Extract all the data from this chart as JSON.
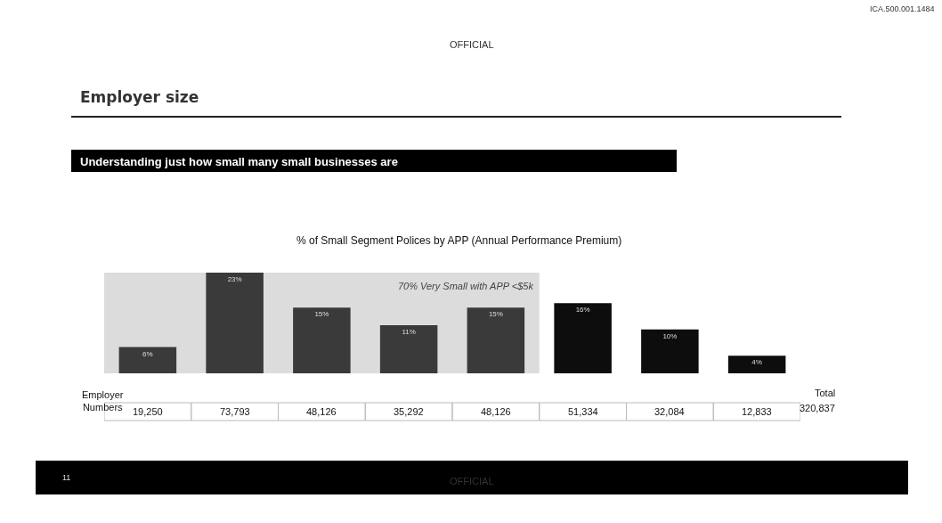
{
  "chart_data": {
    "type": "bar",
    "title": "Employer size",
    "subtitle": "Understanding just how small many small businesses are",
    "categories": [
      null,
      null,
      null,
      null,
      null,
      null,
      null,
      null
    ],
    "values": [
      6,
      23,
      15,
      11,
      15,
      16,
      10,
      4
    ],
    "colors": [
      "#3a3a3a",
      "#3a3a3a",
      "#3a3a3a",
      "#3a3a3a",
      "#3a3a3a",
      "#0d0d0d",
      "#0d0d0d",
      "#0d0d0d"
    ],
    "value_labels": [
      "6%",
      "23%",
      "15%",
      "11%",
      "15%",
      "16%",
      "10%",
      "4%"
    ],
    "annotations": [
      "70% Very Small with APP <$5k",
      "OFFICIAL",
      "ICA.500.001.1484",
      "% of Small Segment Polices by APP (Annual Performance Premium)",
      "Employer Numbers",
      "19,250",
      "73,793",
      "48,126",
      "35,292",
      "48,126",
      "51,334",
      "32,084",
      "12,833",
      "Total",
      "320,837",
      "11",
      "OFFICIAL"
    ],
    "legend": false
  }
}
